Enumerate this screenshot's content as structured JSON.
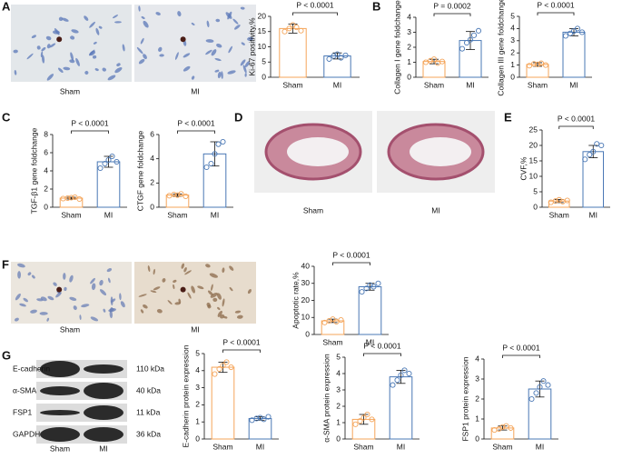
{
  "panel_labels": [
    "A",
    "B",
    "C",
    "D",
    "E",
    "F",
    "G"
  ],
  "images": [
    {
      "caption": "Sham"
    },
    {
      "caption": "MI"
    },
    {
      "caption": "Sham"
    },
    {
      "caption": "MI"
    },
    {
      "caption": "Sham"
    },
    {
      "caption": "MI"
    }
  ],
  "blot": {
    "rows": [
      {
        "protein": "E-cadherin",
        "size": "110 kDa"
      },
      {
        "protein": "α-SMA",
        "size": "40 kDa"
      },
      {
        "protein": "FSP1",
        "size": "11 kDa"
      },
      {
        "protein": "GAPDH",
        "size": "36 kDa"
      }
    ],
    "lanes": [
      "Sham",
      "MI"
    ]
  },
  "chart_data": [
    {
      "type": "bar",
      "ylabel": "Ki-67 positivity,%",
      "categories": [
        "Sham",
        "MI"
      ],
      "values": [
        16,
        7
      ],
      "errors": [
        1.5,
        1
      ],
      "points": [
        [
          15,
          16,
          17.2,
          16.4,
          15.3
        ],
        [
          6,
          7,
          7.6,
          6.4,
          7.2
        ]
      ],
      "colors": [
        "#f5a55a",
        "#4a78b5"
      ],
      "annotation": "P < 0.0001",
      "ylim": [
        0,
        20
      ],
      "yticks": [
        0,
        5,
        10,
        15,
        20
      ]
    },
    {
      "type": "bar",
      "ylabel": "Collagen I gene foldchange",
      "categories": [
        "Sham",
        "MI"
      ],
      "values": [
        1.05,
        2.45
      ],
      "errors": [
        0.15,
        0.6
      ],
      "points": [
        [
          1,
          1.1,
          1.2,
          0.95,
          1.05
        ],
        [
          1.9,
          2.3,
          2.5,
          2.8,
          3.1
        ]
      ],
      "colors": [
        "#f5a55a",
        "#4a78b5"
      ],
      "annotation": "P = 0.0002",
      "ylim": [
        0,
        4
      ],
      "yticks": [
        0,
        1,
        2,
        3,
        4
      ]
    },
    {
      "type": "bar",
      "ylabel": "Collagen III gene foldchange",
      "categories": [
        "Sham",
        "MI"
      ],
      "values": [
        1.05,
        3.7
      ],
      "errors": [
        0.15,
        0.3
      ],
      "points": [
        [
          0.95,
          1.1,
          1.05,
          1.15,
          1
        ],
        [
          3.4,
          3.6,
          3.8,
          4,
          3.7
        ]
      ],
      "colors": [
        "#f5a55a",
        "#4a78b5"
      ],
      "annotation": "P < 0.0001",
      "ylim": [
        0,
        5
      ],
      "yticks": [
        0,
        1,
        2,
        3,
        4,
        5
      ]
    },
    {
      "type": "bar",
      "ylabel": "TGF-β1 gene foldchange",
      "categories": [
        "Sham",
        "MI"
      ],
      "values": [
        1,
        5
      ],
      "errors": [
        0.1,
        0.6
      ],
      "points": [
        [
          0.95,
          1,
          1.05,
          1.1,
          0.9
        ],
        [
          4.3,
          4.8,
          5.2,
          5.6,
          5
        ]
      ],
      "colors": [
        "#f5a55a",
        "#4a78b5"
      ],
      "annotation": "P < 0.0001",
      "ylim": [
        0,
        8
      ],
      "yticks": [
        0,
        2,
        4,
        6,
        8
      ]
    },
    {
      "type": "bar",
      "ylabel": "CTGF gene foldchange",
      "categories": [
        "Sham",
        "MI"
      ],
      "values": [
        1,
        4.4
      ],
      "errors": [
        0.1,
        1
      ],
      "points": [
        [
          0.95,
          1.05,
          1,
          1.1,
          0.9
        ],
        [
          3.3,
          3.6,
          4.4,
          5.2,
          5.4
        ]
      ],
      "colors": [
        "#f5a55a",
        "#4a78b5"
      ],
      "annotation": "P < 0.0001",
      "ylim": [
        0,
        6
      ],
      "yticks": [
        0,
        2,
        4,
        6
      ]
    },
    {
      "type": "bar",
      "ylabel": "CVF,%",
      "categories": [
        "Sham",
        "MI"
      ],
      "values": [
        2,
        18
      ],
      "errors": [
        0.5,
        2
      ],
      "points": [
        [
          1.6,
          2,
          2.4,
          1.8,
          2.2
        ],
        [
          15.5,
          17,
          18,
          20.5,
          20
        ]
      ],
      "colors": [
        "#f5a55a",
        "#4a78b5"
      ],
      "annotation": "P < 0.0001",
      "ylim": [
        0,
        25
      ],
      "yticks": [
        0,
        5,
        10,
        15,
        20,
        25
      ]
    },
    {
      "type": "bar",
      "ylabel": "Apoptotic rate,%",
      "categories": [
        "Sham",
        "MI"
      ],
      "values": [
        8,
        28
      ],
      "errors": [
        1,
        2
      ],
      "points": [
        [
          7,
          8,
          9,
          7.5,
          8.5
        ],
        [
          25,
          27,
          29,
          28,
          30
        ]
      ],
      "colors": [
        "#f5a55a",
        "#4a78b5"
      ],
      "annotation": "P < 0.0001",
      "ylim": [
        0,
        40
      ],
      "yticks": [
        0,
        10,
        20,
        30,
        40
      ]
    },
    {
      "type": "bar",
      "ylabel": "E-cadherin protein expression",
      "categories": [
        "Sham",
        "MI"
      ],
      "values": [
        4.2,
        1.2
      ],
      "errors": [
        0.3,
        0.1
      ],
      "points": [
        [
          3.8,
          4.1,
          4.3,
          4.5,
          4.2
        ],
        [
          1.1,
          1.2,
          1.25,
          1.15,
          1.3
        ]
      ],
      "colors": [
        "#f5a55a",
        "#4a78b5"
      ],
      "annotation": "P < 0.0001",
      "ylim": [
        0,
        5
      ],
      "yticks": [
        0,
        1,
        2,
        3,
        4,
        5
      ]
    },
    {
      "type": "bar",
      "ylabel": "α-SMA protein expression",
      "categories": [
        "Sham",
        "MI"
      ],
      "values": [
        1.2,
        3.8
      ],
      "errors": [
        0.3,
        0.4
      ],
      "points": [
        [
          0.9,
          1.1,
          1.3,
          1.5,
          1.2
        ],
        [
          3.3,
          3.6,
          3.9,
          4.2,
          4
        ]
      ],
      "colors": [
        "#f5a55a",
        "#4a78b5"
      ],
      "annotation": "P < 0.0001",
      "ylim": [
        0,
        5
      ],
      "yticks": [
        0,
        1,
        2,
        3,
        4,
        5
      ]
    },
    {
      "type": "bar",
      "ylabel": "FSP1 protein expression",
      "categories": [
        "Sham",
        "MI"
      ],
      "values": [
        0.55,
        2.5
      ],
      "errors": [
        0.1,
        0.4
      ],
      "points": [
        [
          0.45,
          0.5,
          0.6,
          0.65,
          0.55
        ],
        [
          2,
          2.3,
          2.6,
          2.9,
          2.7
        ]
      ],
      "colors": [
        "#f5a55a",
        "#4a78b5"
      ],
      "annotation": "P < 0.0001",
      "ylim": [
        0,
        4
      ],
      "yticks": [
        0,
        1,
        2,
        3,
        4
      ]
    }
  ]
}
